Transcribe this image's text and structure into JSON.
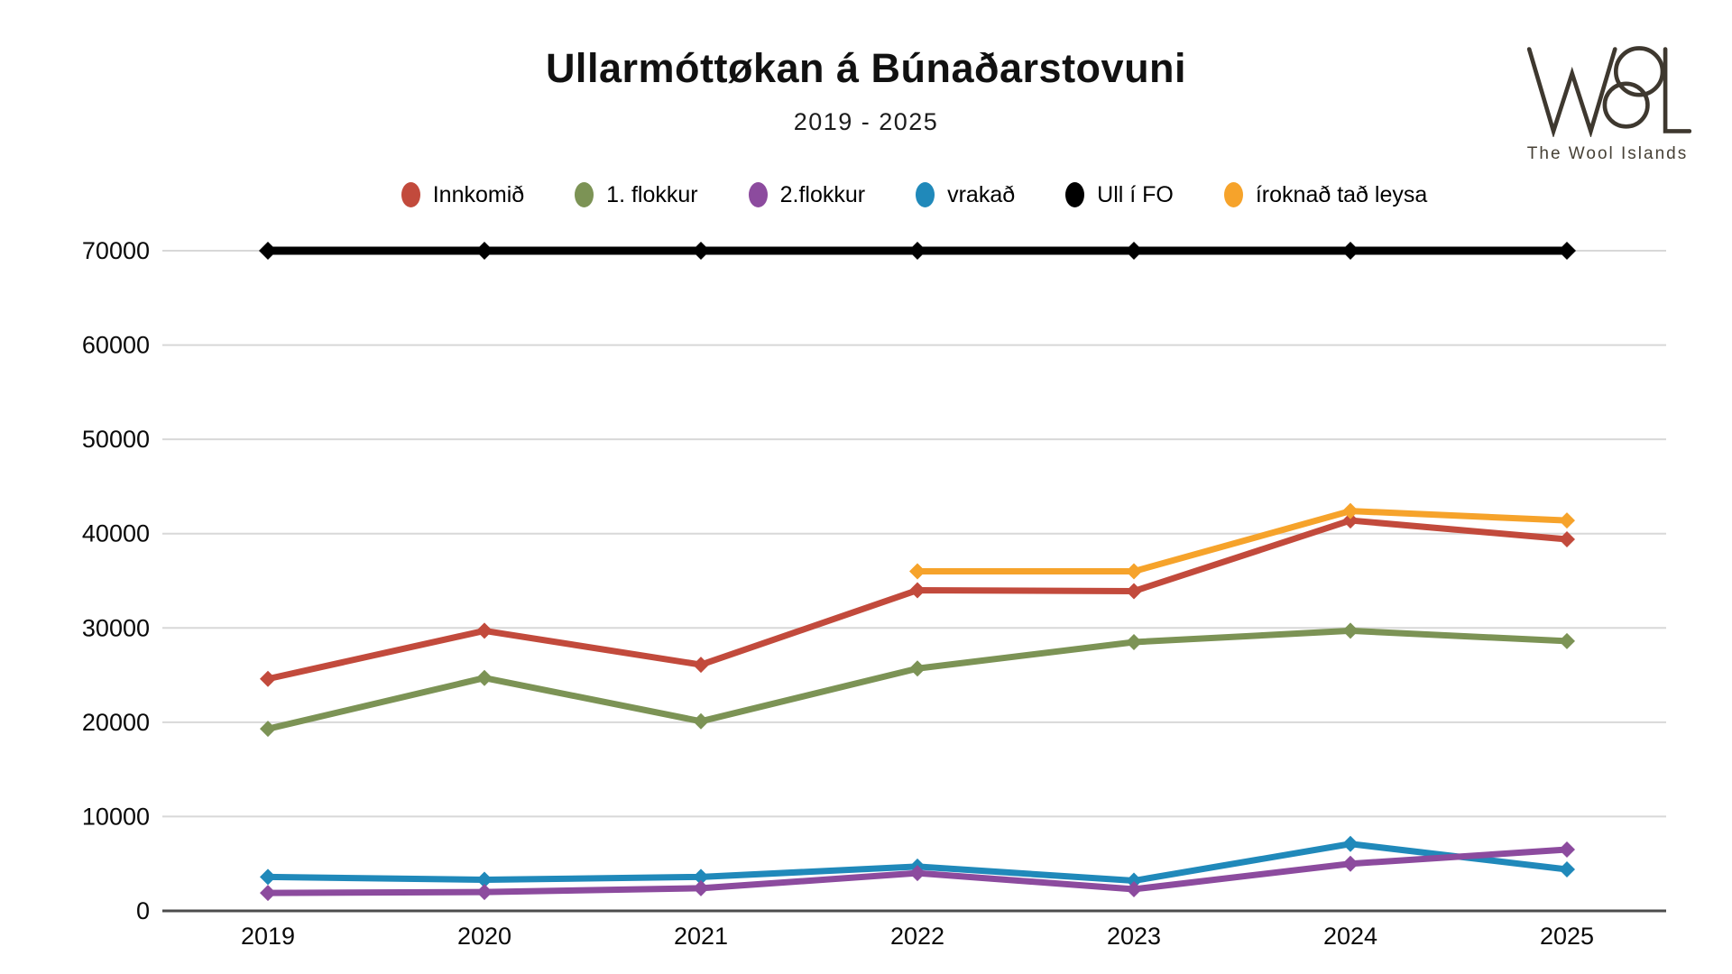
{
  "header": {
    "title": "Ullarmóttøkan á Búnaðarstovuni",
    "subtitle": "2019 - 2025"
  },
  "logo": {
    "brand": "WOOL",
    "tagline": "The Wool Islands",
    "color": "#3e382f"
  },
  "chart_data": {
    "type": "line",
    "title": "Ullarmóttøkan á Búnaðarstovuni",
    "subtitle": "2019 - 2025",
    "categories": [
      "2019",
      "2020",
      "2021",
      "2022",
      "2023",
      "2024",
      "2025"
    ],
    "series": [
      {
        "name": "Innkomið",
        "color": "#c24a3c",
        "values": [
          24600,
          29700,
          26100,
          34000,
          33900,
          41400,
          39400
        ]
      },
      {
        "name": "1. flokkur",
        "color": "#7c9355",
        "values": [
          19300,
          24700,
          20100,
          25700,
          28500,
          29700,
          28600
        ]
      },
      {
        "name": "2.flokkur",
        "color": "#8c4b9e",
        "values": [
          1900,
          2000,
          2400,
          4000,
          2300,
          5000,
          6500
        ]
      },
      {
        "name": "vrakað",
        "color": "#2089ba",
        "values": [
          3600,
          3300,
          3600,
          4700,
          3200,
          7100,
          4400
        ]
      },
      {
        "name": "Ull í FO",
        "color": "#000000",
        "values": [
          70000,
          70000,
          70000,
          70000,
          70000,
          70000,
          70000
        ]
      },
      {
        "name": "íroknað tað leysa",
        "color": "#f6a32b",
        "values": [
          null,
          null,
          null,
          36000,
          36000,
          42400,
          41400
        ]
      }
    ],
    "draw_order": [
      3,
      2,
      1,
      0,
      5,
      4
    ],
    "ylim": [
      0,
      70000
    ],
    "yticks": [
      0,
      10000,
      20000,
      30000,
      40000,
      50000,
      60000,
      70000
    ],
    "grid": true,
    "grid_color": "#d8d8d8",
    "axis_color": "#4c4c4c",
    "legend_position": "top"
  }
}
